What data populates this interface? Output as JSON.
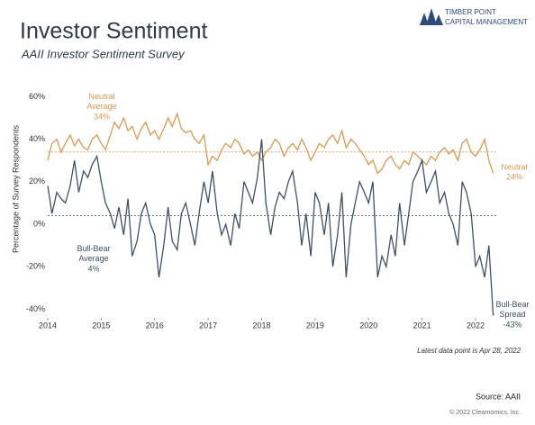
{
  "chart_data": {
    "type": "line",
    "title": "Investor Sentiment",
    "subtitle": "AAII Investor Sentiment Survey",
    "y_label": "Percentage of Survey Respondents",
    "logo": [
      "Timber Point",
      "Capital Management"
    ],
    "note": "Latest data point is Apr 28, 2022",
    "source": "Source: AAII",
    "copyright": "© 2022 Clearnomics, Inc.",
    "xlim": [
      2014,
      2022.4
    ],
    "xticks": [
      2014,
      2015,
      2016,
      2017,
      2018,
      2019,
      2020,
      2021,
      2022
    ],
    "ylim": [
      -44,
      62
    ],
    "yticks": [
      {
        "value": 60,
        "label": "60%"
      },
      {
        "value": 40,
        "label": "40%"
      },
      {
        "value": 20,
        "label": "20%"
      },
      {
        "value": 0,
        "label": "0%"
      },
      {
        "value": -20,
        "label": "-20%"
      },
      {
        "value": -40,
        "label": "-40%"
      }
    ],
    "x": [
      2014.0,
      2014.08,
      2014.17,
      2014.25,
      2014.33,
      2014.42,
      2014.5,
      2014.58,
      2014.67,
      2014.75,
      2014.83,
      2014.92,
      2015.0,
      2015.08,
      2015.17,
      2015.25,
      2015.33,
      2015.42,
      2015.5,
      2015.58,
      2015.67,
      2015.75,
      2015.83,
      2015.92,
      2016.0,
      2016.08,
      2016.17,
      2016.25,
      2016.33,
      2016.42,
      2016.5,
      2016.58,
      2016.67,
      2016.75,
      2016.83,
      2016.92,
      2017.0,
      2017.08,
      2017.17,
      2017.25,
      2017.33,
      2017.42,
      2017.5,
      2017.58,
      2017.67,
      2017.75,
      2017.83,
      2017.92,
      2018.0,
      2018.08,
      2018.17,
      2018.25,
      2018.33,
      2018.42,
      2018.5,
      2018.58,
      2018.67,
      2018.75,
      2018.83,
      2018.92,
      2019.0,
      2019.08,
      2019.17,
      2019.25,
      2019.33,
      2019.42,
      2019.5,
      2019.58,
      2019.67,
      2019.75,
      2019.83,
      2019.92,
      2020.0,
      2020.08,
      2020.17,
      2020.25,
      2020.33,
      2020.42,
      2020.5,
      2020.58,
      2020.67,
      2020.75,
      2020.83,
      2020.92,
      2021.0,
      2021.08,
      2021.17,
      2021.25,
      2021.33,
      2021.42,
      2021.5,
      2021.58,
      2021.67,
      2021.75,
      2021.83,
      2021.92,
      2022.0,
      2022.08,
      2022.17,
      2022.25,
      2022.33
    ],
    "series": [
      {
        "name": "Neutral",
        "color": "#e0974f",
        "last_label": "24%",
        "values": [
          30,
          38,
          40,
          34,
          38,
          42,
          37,
          40,
          36,
          35,
          40,
          42,
          38,
          35,
          42,
          48,
          45,
          50,
          44,
          46,
          40,
          45,
          48,
          42,
          44,
          40,
          45,
          50,
          46,
          52,
          45,
          43,
          44,
          40,
          38,
          42,
          28,
          32,
          30,
          35,
          38,
          36,
          40,
          38,
          33,
          35,
          32,
          34,
          30,
          34,
          36,
          40,
          38,
          32,
          36,
          38,
          35,
          40,
          36,
          30,
          34,
          38,
          36,
          40,
          42,
          38,
          44,
          36,
          40,
          38,
          35,
          32,
          28,
          30,
          24,
          26,
          30,
          32,
          28,
          26,
          30,
          28,
          34,
          32,
          30,
          28,
          32,
          30,
          34,
          36,
          33,
          35,
          30,
          38,
          40,
          34,
          32,
          35,
          40,
          30,
          24
        ]
      },
      {
        "name": "Bull-Bear Spread",
        "color": "#3e5164",
        "last_label": "-43%",
        "values": [
          18,
          5,
          15,
          12,
          10,
          18,
          30,
          15,
          25,
          22,
          28,
          32,
          20,
          10,
          5,
          -2,
          8,
          -5,
          12,
          -15,
          -8,
          5,
          10,
          0,
          -5,
          -25,
          -10,
          8,
          -8,
          -12,
          5,
          10,
          0,
          -10,
          5,
          20,
          10,
          25,
          5,
          -5,
          0,
          -10,
          5,
          -2,
          20,
          15,
          10,
          22,
          40,
          10,
          -5,
          8,
          15,
          12,
          20,
          25,
          10,
          -10,
          5,
          -15,
          15,
          10,
          -5,
          10,
          -20,
          -5,
          15,
          -25,
          0,
          10,
          20,
          15,
          10,
          20,
          -25,
          -15,
          -20,
          -5,
          -15,
          10,
          -10,
          5,
          20,
          25,
          30,
          15,
          20,
          25,
          10,
          15,
          5,
          0,
          -10,
          20,
          15,
          5,
          -20,
          -15,
          -25,
          -10,
          -43
        ]
      }
    ],
    "reference_lines": [
      {
        "name": "Neutral Average",
        "value": 34,
        "label": "34%",
        "color": "#e0974f"
      },
      {
        "name": "Bull-Bear Average",
        "value": 4,
        "label": "4%",
        "color": "#3e5164"
      }
    ]
  }
}
